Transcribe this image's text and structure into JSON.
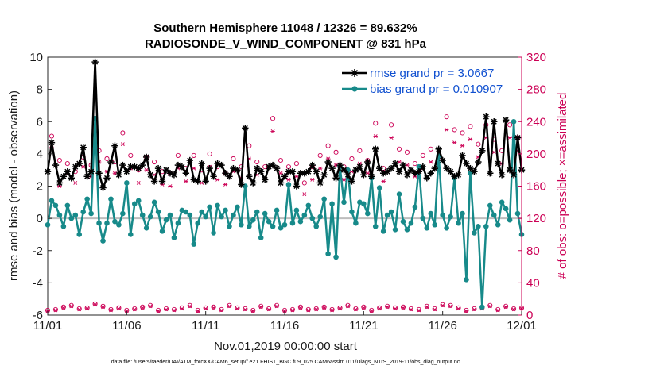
{
  "chart_data": {
    "type": "line",
    "title_line1": "Southern Hemisphere 11048 / 12326 = 89.632%",
    "title_line2": "RADIOSONDE_V_WIND_COMPONENT @ 831 hPa",
    "xlabel": "Nov.01,2019 00:00:00 start",
    "ylabel": "rmse and bias (model - observation)",
    "ylabel_right": "# of obs: o=possible; ×=assimilated",
    "footer": "data file: /Users/raeder/DAI/ATM_forcXX/CAM6_setup/f.e21.FHIST_BGC.f09_025.CAM6assim.011/Diags_NTrS_2019-11/obs_diag_output.nc",
    "xlim": [
      0,
      30
    ],
    "ylim": [
      -6,
      10
    ],
    "ylim_right": [
      0,
      320
    ],
    "x_ticks": [
      0,
      5,
      10,
      15,
      20,
      25,
      30
    ],
    "x_tick_labels": [
      "11/01",
      "11/06",
      "11/11",
      "11/16",
      "11/21",
      "11/26",
      "12/01"
    ],
    "y_ticks": [
      -6,
      -4,
      -2,
      0,
      2,
      4,
      6,
      8,
      10
    ],
    "y_tick_labels": [
      "-6",
      "-4",
      "-2",
      "0",
      "2",
      "4",
      "6",
      "8",
      "10"
    ],
    "y_right_ticks": [
      0,
      40,
      80,
      120,
      160,
      200,
      240,
      280,
      320
    ],
    "y_right_tick_labels": [
      "0",
      "40",
      "80",
      "120",
      "160",
      "200",
      "240",
      "280",
      "320"
    ],
    "zero_line": 0,
    "legend_position": "top-right",
    "colors": {
      "rmse": "#000000",
      "bias": "#178a8a",
      "obs": "#cc0055",
      "zero": "#bdbdbd",
      "legend_text": "#1050d0"
    },
    "series": [
      {
        "name": "rmse grand pr = 3.0667",
        "color": "#000000",
        "x": [
          0.0,
          0.25,
          0.5,
          0.75,
          1.0,
          1.25,
          1.5,
          1.75,
          2.0,
          2.25,
          2.5,
          2.75,
          3.0,
          3.25,
          3.5,
          3.75,
          4.0,
          4.25,
          4.5,
          4.75,
          5.0,
          5.25,
          5.5,
          5.75,
          6.0,
          6.25,
          6.5,
          6.75,
          7.0,
          7.25,
          7.5,
          7.75,
          8.0,
          8.25,
          8.5,
          8.75,
          9.0,
          9.25,
          9.5,
          9.75,
          10.0,
          10.25,
          10.5,
          10.75,
          11.0,
          11.25,
          11.5,
          11.75,
          12.0,
          12.25,
          12.5,
          12.75,
          13.0,
          13.25,
          13.5,
          13.75,
          14.0,
          14.25,
          14.5,
          14.75,
          15.0,
          15.25,
          15.5,
          15.75,
          16.0,
          16.25,
          16.5,
          16.75,
          17.0,
          17.25,
          17.5,
          17.75,
          18.0,
          18.25,
          18.5,
          18.75,
          19.0,
          19.25,
          19.5,
          19.75,
          20.0,
          20.25,
          20.5,
          20.75,
          21.0,
          21.25,
          21.5,
          21.75,
          22.0,
          22.25,
          22.5,
          22.75,
          23.0,
          23.25,
          23.5,
          23.75,
          24.0,
          24.25,
          24.5,
          24.75,
          25.0,
          25.25,
          25.5,
          25.75,
          26.0,
          26.25,
          26.5,
          26.75,
          27.0,
          27.25,
          27.5,
          27.75,
          28.0,
          28.25,
          28.5,
          28.75,
          29.0,
          29.25,
          29.5,
          29.75,
          30.0
        ],
        "y": [
          2.9,
          4.7,
          3.3,
          2.2,
          2.6,
          2.9,
          2.5,
          3.2,
          3.4,
          4.4,
          2.6,
          2.9,
          9.7,
          2.8,
          1.9,
          2.5,
          3.5,
          4.5,
          2.7,
          3.3,
          2.9,
          3.2,
          3.2,
          3.1,
          3.3,
          3.8,
          2.7,
          2.3,
          3.1,
          2.3,
          3.0,
          2.8,
          2.7,
          3.3,
          3.2,
          2.8,
          3.6,
          2.4,
          2.3,
          3.4,
          2.3,
          3.1,
          2.6,
          3.4,
          3.3,
          2.8,
          2.6,
          3.1,
          3.0,
          2.1,
          5.6,
          2.6,
          2.2,
          3.1,
          2.9,
          2.4,
          3.2,
          3.3,
          3.1,
          2.2,
          2.6,
          2.9,
          2.9,
          2.0,
          2.8,
          2.8,
          2.9,
          3.3,
          2.9,
          2.2,
          2.7,
          3.5,
          3.1,
          2.5,
          3.3,
          3.0,
          2.7,
          2.3,
          3.0,
          3.2,
          2.7,
          3.5,
          2.6,
          4.3,
          3.1,
          2.8,
          2.9,
          3.1,
          3.4,
          2.9,
          3.3,
          2.7,
          3.0,
          2.8,
          2.9,
          3.2,
          2.5,
          2.8,
          3.1,
          4.3,
          3.6,
          3.1,
          2.9,
          2.6,
          2.7,
          3.9,
          3.4,
          3.1,
          2.9,
          3.5,
          4.2,
          6.3,
          2.8,
          6.0,
          3.4,
          2.7,
          6.1,
          3.0,
          2.7,
          5.0,
          3.0
        ]
      },
      {
        "name": "bias grand pr = 0.010907",
        "color": "#178a8a",
        "x": [
          0.0,
          0.25,
          0.5,
          0.75,
          1.0,
          1.25,
          1.5,
          1.75,
          2.0,
          2.25,
          2.5,
          2.75,
          3.0,
          3.25,
          3.5,
          3.75,
          4.0,
          4.25,
          4.5,
          4.75,
          5.0,
          5.25,
          5.5,
          5.75,
          6.0,
          6.25,
          6.5,
          6.75,
          7.0,
          7.25,
          7.5,
          7.75,
          8.0,
          8.25,
          8.5,
          8.75,
          9.0,
          9.25,
          9.5,
          9.75,
          10.0,
          10.25,
          10.5,
          10.75,
          11.0,
          11.25,
          11.5,
          11.75,
          12.0,
          12.25,
          12.5,
          12.75,
          13.0,
          13.25,
          13.5,
          13.75,
          14.0,
          14.25,
          14.5,
          14.75,
          15.0,
          15.25,
          15.5,
          15.75,
          16.0,
          16.25,
          16.5,
          16.75,
          17.0,
          17.25,
          17.5,
          17.75,
          18.0,
          18.25,
          18.5,
          18.75,
          19.0,
          19.25,
          19.5,
          19.75,
          20.0,
          20.25,
          20.5,
          20.75,
          21.0,
          21.25,
          21.5,
          21.75,
          22.0,
          22.25,
          22.5,
          22.75,
          23.0,
          23.25,
          23.5,
          23.75,
          24.0,
          24.25,
          24.5,
          24.75,
          25.0,
          25.25,
          25.5,
          25.75,
          26.0,
          26.25,
          26.5,
          26.75,
          27.0,
          27.25,
          27.5,
          27.75,
          28.0,
          28.25,
          28.5,
          28.75,
          29.0,
          29.25,
          29.5,
          29.75,
          30.0
        ],
        "y": [
          -0.4,
          1.1,
          0.8,
          0.2,
          -0.5,
          0.8,
          0.0,
          0.2,
          -1.0,
          0.4,
          1.2,
          0.3,
          6.2,
          -0.3,
          -1.4,
          -0.3,
          1.2,
          -0.2,
          -0.4,
          0.3,
          2.2,
          -1.0,
          0.9,
          1.1,
          0.2,
          -0.6,
          0.1,
          1.0,
          0.4,
          -0.8,
          -0.1,
          0.2,
          -1.2,
          -0.3,
          0.5,
          0.4,
          0.2,
          -1.6,
          -0.3,
          0.4,
          0.1,
          0.7,
          -0.9,
          0.8,
          0.1,
          0.5,
          -0.5,
          0.2,
          0.7,
          -0.4,
          2.0,
          -0.5,
          -0.1,
          0.4,
          -1.2,
          0.3,
          -0.2,
          -0.5,
          0.5,
          -0.6,
          -0.4,
          2.1,
          -0.3,
          0.5,
          -0.2,
          0.2,
          0.8,
          0.0,
          -0.5,
          0.1,
          1.2,
          -2.2,
          0.9,
          -2.4,
          3.2,
          1.0,
          3.0,
          0.4,
          -0.3,
          1.0,
          0.9,
          0.3,
          2.5,
          -0.5,
          1.9,
          -0.8,
          0.2,
          0.4,
          -0.7,
          1.5,
          -0.2,
          -0.7,
          -0.3,
          0.7,
          3.2,
          0.0,
          -0.6,
          0.3,
          -0.4,
          3.9,
          0.2,
          -0.6,
          0.1,
          2.5,
          -0.3,
          0.3,
          -3.8,
          2.8,
          -0.9,
          -0.5,
          -5.5,
          -0.5,
          0.8,
          0.2,
          -0.4,
          1.0,
          0.6,
          -0.1,
          6.0,
          0.3,
          -1.0
        ]
      }
    ],
    "obs_possible": {
      "x": [
        0.0,
        0.25,
        0.5,
        0.75,
        1.0,
        1.25,
        1.5,
        1.75,
        2.0,
        2.25,
        2.5,
        2.75,
        3.0,
        3.25,
        3.5,
        3.75,
        4.0,
        4.25,
        4.5,
        4.75,
        5.0,
        5.25,
        5.5,
        5.75,
        6.0,
        6.25,
        6.5,
        6.75,
        7.0,
        7.25,
        7.5,
        7.75,
        8.0,
        8.25,
        8.5,
        8.75,
        9.0,
        9.25,
        9.5,
        9.75,
        10.0,
        10.25,
        10.5,
        10.75,
        11.0,
        11.25,
        11.5,
        11.75,
        12.0,
        12.25,
        12.5,
        12.75,
        13.0,
        13.25,
        13.5,
        13.75,
        14.0,
        14.25,
        14.5,
        14.75,
        15.0,
        15.25,
        15.5,
        15.75,
        16.0,
        16.25,
        16.5,
        16.75,
        17.0,
        17.25,
        17.5,
        17.75,
        18.0,
        18.25,
        18.5,
        18.75,
        19.0,
        19.25,
        19.5,
        19.75,
        20.0,
        20.25,
        20.5,
        20.75,
        21.0,
        21.25,
        21.5,
        21.75,
        22.0,
        22.25,
        22.5,
        22.75,
        23.0,
        23.25,
        23.5,
        23.75,
        24.0,
        24.25,
        24.5,
        24.75,
        25.0,
        25.25,
        25.5,
        25.75,
        26.0,
        26.25,
        26.5,
        26.75,
        27.0,
        27.25,
        27.5,
        27.75,
        28.0,
        28.25,
        28.5,
        28.75,
        29.0,
        29.25,
        29.5,
        29.75,
        30.0
      ],
      "y": [
        6,
        222,
        7,
        192,
        10,
        188,
        12,
        178,
        8,
        196,
        9,
        186,
        14,
        204,
        11,
        194,
        7,
        190,
        9,
        226,
        6,
        198,
        8,
        180,
        10,
        196,
        12,
        190,
        6,
        178,
        8,
        176,
        7,
        198,
        9,
        182,
        12,
        198,
        6,
        180,
        9,
        200,
        10,
        184,
        7,
        176,
        12,
        194,
        9,
        184,
        8,
        210,
        6,
        190,
        11,
        184,
        8,
        244,
        12,
        192,
        6,
        184,
        7,
        188,
        10,
        164,
        7,
        184,
        8,
        198,
        10,
        210,
        7,
        202,
        9,
        184,
        12,
        194,
        8,
        204,
        10,
        192,
        6,
        238,
        9,
        182,
        11,
        236,
        9,
        206,
        10,
        202,
        8,
        188,
        7,
        198,
        11,
        206,
        8,
        196,
        13,
        246,
        12,
        230,
        9,
        226,
        6,
        234,
        8,
        212,
        9,
        236,
        12,
        218,
        7,
        204,
        11,
        236,
        8,
        220,
        9
      ]
    },
    "obs_assimilated": {
      "x": [
        0.0,
        0.25,
        0.5,
        0.75,
        1.0,
        1.25,
        1.5,
        1.75,
        2.0,
        2.25,
        2.5,
        2.75,
        3.0,
        3.25,
        3.5,
        3.75,
        4.0,
        4.25,
        4.5,
        4.75,
        5.0,
        5.25,
        5.5,
        5.75,
        6.0,
        6.25,
        6.5,
        6.75,
        7.0,
        7.25,
        7.5,
        7.75,
        8.0,
        8.25,
        8.5,
        8.75,
        9.0,
        9.25,
        9.5,
        9.75,
        10.0,
        10.25,
        10.5,
        10.75,
        11.0,
        11.25,
        11.5,
        11.75,
        12.0,
        12.25,
        12.5,
        12.75,
        13.0,
        13.25,
        13.5,
        13.75,
        14.0,
        14.25,
        14.5,
        14.75,
        15.0,
        15.25,
        15.5,
        15.75,
        16.0,
        16.25,
        16.5,
        16.75,
        17.0,
        17.25,
        17.5,
        17.75,
        18.0,
        18.25,
        18.5,
        18.75,
        19.0,
        19.25,
        19.5,
        19.75,
        20.0,
        20.25,
        20.5,
        20.75,
        21.0,
        21.25,
        21.5,
        21.75,
        22.0,
        22.25,
        22.5,
        22.75,
        23.0,
        23.25,
        23.5,
        23.75,
        24.0,
        24.25,
        24.5,
        24.75,
        25.0,
        25.25,
        25.5,
        25.75,
        26.0,
        26.25,
        26.5,
        26.75,
        27.0,
        27.25,
        27.5,
        27.75,
        28.0,
        28.25,
        28.5,
        28.75,
        29.0,
        29.25,
        29.5,
        29.75,
        30.0
      ],
      "y": [
        5,
        208,
        6,
        160,
        9,
        176,
        11,
        164,
        7,
        184,
        8,
        172,
        13,
        190,
        10,
        178,
        6,
        176,
        8,
        212,
        5,
        182,
        7,
        164,
        9,
        180,
        11,
        174,
        5,
        162,
        7,
        160,
        6,
        182,
        8,
        166,
        11,
        182,
        5,
        164,
        8,
        184,
        9,
        168,
        6,
        162,
        11,
        178,
        8,
        170,
        7,
        194,
        5,
        174,
        10,
        168,
        7,
        228,
        11,
        176,
        5,
        168,
        6,
        172,
        9,
        150,
        6,
        168,
        7,
        182,
        9,
        194,
        6,
        186,
        8,
        168,
        11,
        178,
        7,
        188,
        9,
        176,
        5,
        222,
        8,
        166,
        10,
        220,
        8,
        190,
        9,
        186,
        7,
        172,
        6,
        182,
        10,
        190,
        7,
        180,
        12,
        230,
        11,
        214,
        8,
        210,
        5,
        218,
        7,
        196,
        8,
        220,
        11,
        202,
        6,
        188,
        10,
        220,
        7,
        204,
        8
      ]
    }
  }
}
